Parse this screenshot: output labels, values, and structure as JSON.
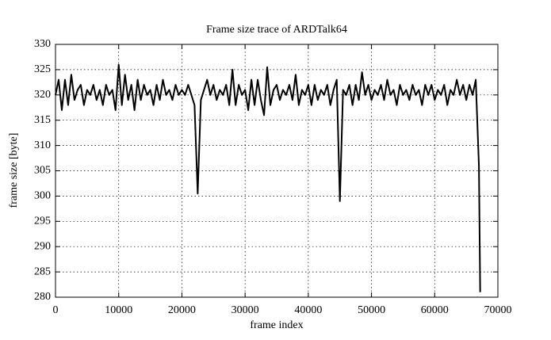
{
  "chart_data": {
    "type": "line",
    "title": "Frame size trace of ARDTalk64",
    "x_label": "frame index",
    "y_label": "frame size [byte]",
    "grid": true,
    "xlim": [
      0,
      70000
    ],
    "xticks": [
      0,
      10000,
      20000,
      30000,
      40000,
      50000,
      60000,
      70000
    ],
    "ylim": [
      280,
      330
    ],
    "yticks": [
      280,
      285,
      290,
      295,
      300,
      305,
      310,
      315,
      320,
      325,
      330
    ],
    "series": [
      {
        "color": "#000000",
        "x": [
          0,
          500,
          1000,
          1500,
          2000,
          2500,
          3000,
          3500,
          4000,
          4500,
          5000,
          5500,
          6000,
          6500,
          7000,
          7500,
          8000,
          8500,
          9000,
          9500,
          10000,
          10500,
          11000,
          11500,
          12000,
          12500,
          13000,
          13500,
          14000,
          14500,
          15000,
          15500,
          16000,
          16500,
          17000,
          17500,
          18000,
          18500,
          19000,
          19500,
          20000,
          20500,
          21000,
          21500,
          22000,
          22500,
          23000,
          23500,
          24000,
          24500,
          25000,
          25500,
          26000,
          26500,
          27000,
          27500,
          28000,
          28500,
          29000,
          29500,
          30000,
          30500,
          31000,
          31500,
          32000,
          32500,
          33000,
          33500,
          34000,
          34500,
          35000,
          35500,
          36000,
          36500,
          37000,
          37500,
          38000,
          38500,
          39000,
          39500,
          40000,
          40500,
          41000,
          41500,
          42000,
          42500,
          43000,
          43500,
          44000,
          44500,
          45000,
          45500,
          46000,
          46500,
          47000,
          47500,
          48000,
          48500,
          49000,
          49500,
          50000,
          50500,
          51000,
          51500,
          52000,
          52500,
          53000,
          53500,
          54000,
          54500,
          55000,
          55500,
          56000,
          56500,
          57000,
          57500,
          58000,
          58500,
          59000,
          59500,
          60000,
          60500,
          61000,
          61500,
          62000,
          62500,
          63000,
          63500,
          64000,
          64500,
          65000,
          65500,
          66000,
          66500,
          67000,
          67200
        ],
        "values": [
          320,
          323,
          317,
          323,
          318,
          324,
          319,
          321,
          322,
          318,
          321,
          320,
          322,
          319,
          321,
          318,
          322,
          320,
          321,
          317,
          326,
          318,
          324,
          319,
          322,
          317,
          323,
          319,
          322,
          320,
          321,
          318,
          322,
          319,
          323,
          320,
          321,
          319,
          322,
          320,
          321,
          320,
          322,
          320,
          318,
          300.5,
          319,
          321,
          323,
          320,
          322,
          319,
          321,
          320,
          322,
          318,
          325,
          318,
          322,
          320,
          321,
          317,
          323,
          318,
          323,
          319,
          316,
          325.5,
          318,
          321,
          322,
          319,
          321,
          320,
          322,
          319,
          324,
          318,
          321,
          320,
          322,
          318,
          322,
          319,
          321,
          320,
          322,
          318,
          321,
          323,
          299,
          321,
          320,
          322,
          318,
          322,
          319,
          324.5,
          320,
          322,
          319,
          321,
          320,
          322,
          319,
          323,
          320,
          321,
          318,
          322,
          320,
          321,
          319,
          322,
          320,
          321,
          318,
          322,
          320,
          322,
          319,
          321,
          320,
          322,
          318,
          321,
          320,
          323,
          320,
          322,
          319,
          322,
          320,
          323,
          306,
          281
        ]
      }
    ]
  }
}
